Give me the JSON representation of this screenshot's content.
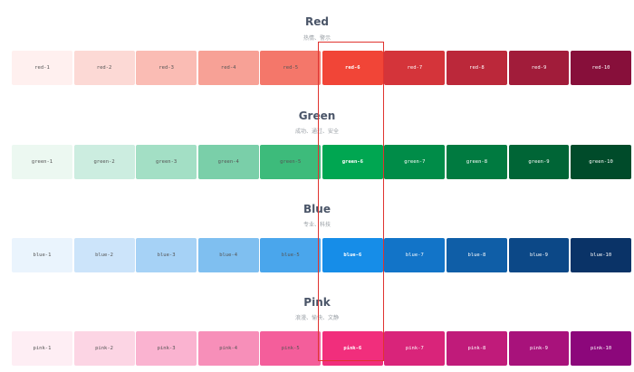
{
  "palettes": [
    {
      "title": "Red",
      "subtitle": "热情、警示",
      "swatches": [
        {
          "label": "red-1",
          "color": "#fff0ef",
          "text": "light"
        },
        {
          "label": "red-2",
          "color": "#fcd9d5",
          "text": "light"
        },
        {
          "label": "red-3",
          "color": "#fabcb4",
          "text": "light"
        },
        {
          "label": "red-4",
          "color": "#f7a196",
          "text": "light"
        },
        {
          "label": "red-5",
          "color": "#f4776a",
          "text": "light"
        },
        {
          "label": "red-6",
          "color": "#f14537",
          "text": "dark"
        },
        {
          "label": "red-7",
          "color": "#d4343a",
          "text": "dark"
        },
        {
          "label": "red-8",
          "color": "#bb283a",
          "text": "dark"
        },
        {
          "label": "red-9",
          "color": "#a11c3a",
          "text": "dark"
        },
        {
          "label": "red-10",
          "color": "#870f3a",
          "text": "dark"
        }
      ]
    },
    {
      "title": "Green",
      "subtitle": "成功、通过、安全",
      "swatches": [
        {
          "label": "green-1",
          "color": "#ecf8f1",
          "text": "light"
        },
        {
          "label": "green-2",
          "color": "#ccede0",
          "text": "light"
        },
        {
          "label": "green-3",
          "color": "#a3dfc5",
          "text": "light"
        },
        {
          "label": "green-4",
          "color": "#7acfa9",
          "text": "light"
        },
        {
          "label": "green-5",
          "color": "#3dbb7b",
          "text": "light"
        },
        {
          "label": "green-6",
          "color": "#00a651",
          "text": "dark"
        },
        {
          "label": "green-7",
          "color": "#008c48",
          "text": "dark"
        },
        {
          "label": "green-8",
          "color": "#007a40",
          "text": "dark"
        },
        {
          "label": "green-9",
          "color": "#006536",
          "text": "dark"
        },
        {
          "label": "green-10",
          "color": "#004b2a",
          "text": "dark"
        }
      ]
    },
    {
      "title": "Blue",
      "subtitle": "专业、科技",
      "swatches": [
        {
          "label": "blue-1",
          "color": "#eaf4fd",
          "text": "light"
        },
        {
          "label": "blue-2",
          "color": "#cce4fa",
          "text": "light"
        },
        {
          "label": "blue-3",
          "color": "#a6d2f6",
          "text": "light"
        },
        {
          "label": "blue-4",
          "color": "#7fbff0",
          "text": "light"
        },
        {
          "label": "blue-5",
          "color": "#4aa6ec",
          "text": "light"
        },
        {
          "label": "blue-6",
          "color": "#168de8",
          "text": "dark"
        },
        {
          "label": "blue-7",
          "color": "#1274c8",
          "text": "dark"
        },
        {
          "label": "blue-8",
          "color": "#0f5ea7",
          "text": "dark"
        },
        {
          "label": "blue-9",
          "color": "#0c4887",
          "text": "dark"
        },
        {
          "label": "blue-10",
          "color": "#0a3367",
          "text": "dark"
        }
      ]
    },
    {
      "title": "Pink",
      "subtitle": "浪漫、愉快、文静",
      "swatches": [
        {
          "label": "pink-1",
          "color": "#feeef4",
          "text": "light"
        },
        {
          "label": "pink-2",
          "color": "#fcd5e4",
          "text": "light"
        },
        {
          "label": "pink-3",
          "color": "#fab3d0",
          "text": "light"
        },
        {
          "label": "pink-4",
          "color": "#f78fb9",
          "text": "light"
        },
        {
          "label": "pink-5",
          "color": "#f45e9b",
          "text": "light"
        },
        {
          "label": "pink-6",
          "color": "#f12e7c",
          "text": "dark"
        },
        {
          "label": "pink-7",
          "color": "#d9247a",
          "text": "dark"
        },
        {
          "label": "pink-8",
          "color": "#c01b7a",
          "text": "dark"
        },
        {
          "label": "pink-9",
          "color": "#a8127b",
          "text": "dark"
        },
        {
          "label": "pink-10",
          "color": "#8c077b",
          "text": "dark"
        }
      ]
    }
  ],
  "highlight": {
    "color": "#e0332f",
    "column": "6"
  }
}
